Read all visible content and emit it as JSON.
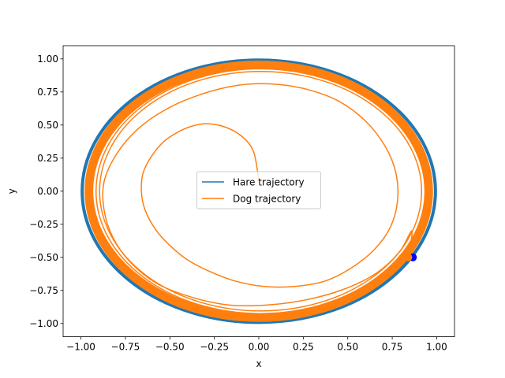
{
  "chart_data": {
    "type": "line",
    "title": "",
    "xlabel": "x",
    "ylabel": "y",
    "xlim": [
      -1.1,
      1.1
    ],
    "ylim": [
      -1.1,
      1.1
    ],
    "xticks": [
      -1.0,
      -0.75,
      -0.5,
      -0.25,
      0.0,
      0.25,
      0.5,
      0.75,
      1.0
    ],
    "yticks": [
      -1.0,
      -0.75,
      -0.5,
      -0.25,
      0.0,
      0.25,
      0.5,
      0.75,
      1.0
    ],
    "xtick_labels": [
      "−1.00",
      "−0.75",
      "−0.50",
      "−0.25",
      "0.00",
      "0.25",
      "0.50",
      "0.75",
      "1.00"
    ],
    "ytick_labels": [
      "−1.00",
      "−0.75",
      "−0.50",
      "−0.25",
      "0.00",
      "0.25",
      "0.50",
      "0.75",
      "1.00"
    ],
    "grid": false,
    "legend_position": "center",
    "series": [
      {
        "name": "Hare trajectory",
        "color": "#1f77b4",
        "shape": "circle",
        "center": [
          0.0,
          0.0
        ],
        "radius": 1.0,
        "x": [
          1.0,
          0.866,
          0.5,
          0.0,
          -0.5,
          -0.866,
          -1.0,
          -0.866,
          -0.5,
          0.0,
          0.5,
          0.866,
          1.0
        ],
        "y": [
          0.0,
          0.5,
          0.866,
          1.0,
          0.866,
          0.5,
          0.0,
          -0.5,
          -0.866,
          -1.0,
          -0.866,
          -0.5,
          0.0
        ]
      },
      {
        "name": "Dog trajectory",
        "color": "#ff7f0e",
        "shape": "spiral",
        "x": [
          0.0,
          -0.03,
          -0.1,
          -0.2,
          -0.3,
          -0.38,
          -0.45,
          -0.53,
          -0.6,
          -0.65,
          -0.66,
          -0.64,
          -0.58,
          -0.5,
          -0.4,
          -0.27,
          -0.13,
          0.03,
          0.2,
          0.37,
          0.52,
          0.65,
          0.74,
          0.78,
          0.77,
          0.71,
          0.6,
          0.45,
          0.27,
          0.08,
          -0.12,
          -0.33,
          -0.52,
          -0.68,
          -0.8,
          -0.87,
          -0.87,
          -0.82,
          -0.72,
          -0.57,
          -0.38,
          -0.17,
          0.05,
          0.27,
          0.48,
          0.66,
          0.79,
          0.86,
          0.84
        ],
        "y": [
          0.08,
          0.3,
          0.42,
          0.49,
          0.51,
          0.49,
          0.45,
          0.38,
          0.27,
          0.14,
          0.0,
          -0.14,
          -0.29,
          -0.41,
          -0.52,
          -0.61,
          -0.68,
          -0.72,
          -0.72,
          -0.68,
          -0.58,
          -0.44,
          -0.27,
          -0.07,
          0.14,
          0.34,
          0.53,
          0.68,
          0.77,
          0.81,
          0.8,
          0.73,
          0.62,
          0.47,
          0.28,
          0.07,
          -0.14,
          -0.35,
          -0.54,
          -0.7,
          -0.8,
          -0.86,
          -0.86,
          -0.82,
          -0.74,
          -0.62,
          -0.46,
          -0.3,
          -0.5
        ]
      }
    ],
    "end_markers": [
      {
        "name": "hare-position",
        "x": 0.866,
        "y": -0.5,
        "color": "#0000ff"
      },
      {
        "name": "dog-position",
        "x": 0.84,
        "y": -0.5,
        "color": "#ff7f0e"
      }
    ]
  }
}
